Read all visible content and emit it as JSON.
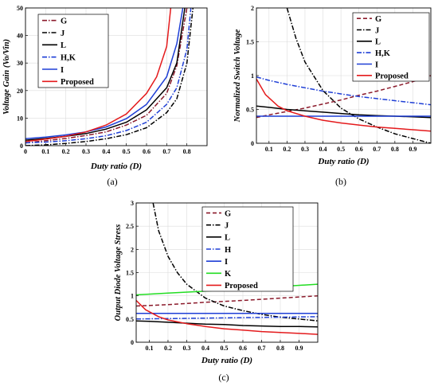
{
  "chart_data": [
    {
      "type": "line",
      "caption": "(a)",
      "xlabel": "Duty ratio (D)",
      "ylabel": "Voltage Gain (Vo/Vin)",
      "xlim": [
        0,
        0.9
      ],
      "ylim": [
        0,
        50
      ],
      "xticks": [
        0,
        0.1,
        0.2,
        0.3,
        0.4,
        0.5,
        0.6,
        0.7,
        0.8
      ],
      "yticks": [
        0,
        10,
        20,
        30,
        40,
        50
      ],
      "grid": true,
      "legend_position": "top-left",
      "series": [
        {
          "name": "G",
          "color": "#8b1a2b",
          "dash": "dashdot",
          "x": [
            0,
            0.1,
            0.2,
            0.3,
            0.4,
            0.5,
            0.6,
            0.7,
            0.75,
            0.8
          ],
          "y": [
            1.0,
            1.8,
            2.6,
            3.7,
            5.0,
            7.5,
            11,
            19,
            29,
            50
          ]
        },
        {
          "name": "J",
          "color": "#000000",
          "dash": "dashdot",
          "x": [
            0,
            0.1,
            0.2,
            0.3,
            0.4,
            0.5,
            0.6,
            0.7,
            0.75,
            0.8,
            0.83
          ],
          "y": [
            0.0,
            0.3,
            0.8,
            1.5,
            2.5,
            4.0,
            6.5,
            12,
            17,
            30,
            50
          ]
        },
        {
          "name": "L",
          "color": "#000000",
          "dash": "solid",
          "x": [
            0,
            0.1,
            0.2,
            0.3,
            0.4,
            0.5,
            0.6,
            0.7,
            0.75,
            0.79
          ],
          "y": [
            2.0,
            2.6,
            3.4,
            4.4,
            6.0,
            8.5,
            13,
            21,
            30,
            50
          ]
        },
        {
          "name": "H,K",
          "color": "#1f3fd6",
          "dash": "dashdot",
          "x": [
            0,
            0.1,
            0.2,
            0.3,
            0.4,
            0.5,
            0.6,
            0.7,
            0.75,
            0.8,
            0.82
          ],
          "y": [
            1.0,
            1.3,
            1.8,
            2.5,
            3.6,
            5.5,
            8.5,
            15,
            21,
            35,
            50
          ]
        },
        {
          "name": "I",
          "color": "#1f3fd6",
          "dash": "solid",
          "x": [
            0,
            0.1,
            0.2,
            0.3,
            0.4,
            0.5,
            0.6,
            0.7,
            0.75,
            0.78
          ],
          "y": [
            2.5,
            3.1,
            3.9,
            5.0,
            6.8,
            9.8,
            15,
            25,
            37,
            50
          ]
        },
        {
          "name": "Proposed",
          "color": "#e41a1c",
          "dash": "solid",
          "x": [
            0,
            0.1,
            0.2,
            0.3,
            0.4,
            0.5,
            0.6,
            0.65,
            0.7,
            0.72
          ],
          "y": [
            1.5,
            2.4,
            3.4,
            5.0,
            7.5,
            11.5,
            19,
            25,
            36,
            50
          ]
        }
      ]
    },
    {
      "type": "line",
      "caption": "(b)",
      "xlabel": "Duty ratio (D)",
      "ylabel": "Normalized Switch Voltage",
      "xlim": [
        0.03,
        1.0
      ],
      "ylim": [
        0,
        2
      ],
      "xticks": [
        0.1,
        0.2,
        0.3,
        0.4,
        0.5,
        0.6,
        0.7,
        0.8,
        0.9
      ],
      "yticks": [
        0,
        0.5,
        1,
        1.5,
        2
      ],
      "grid": true,
      "legend_position": "top-right",
      "series": [
        {
          "name": "G",
          "color": "#8b1a2b",
          "dash": "dash",
          "x": [
            0.03,
            0.1,
            0.2,
            0.3,
            0.4,
            0.5,
            0.6,
            0.7,
            0.8,
            0.9,
            1.0
          ],
          "y": [
            0.38,
            0.42,
            0.47,
            0.52,
            0.58,
            0.64,
            0.71,
            0.77,
            0.84,
            0.91,
            1.0
          ]
        },
        {
          "name": "J",
          "color": "#000000",
          "dash": "dashdot",
          "x": [
            0.2,
            0.25,
            0.3,
            0.4,
            0.5,
            0.6,
            0.7,
            0.8,
            0.9,
            1.0
          ],
          "y": [
            2.0,
            1.55,
            1.2,
            0.78,
            0.52,
            0.36,
            0.24,
            0.14,
            0.07,
            0.0
          ]
        },
        {
          "name": "L",
          "color": "#000000",
          "dash": "solid",
          "x": [
            0.03,
            0.1,
            0.2,
            0.3,
            0.4,
            0.5,
            0.6,
            0.7,
            0.8,
            0.9,
            1.0
          ],
          "y": [
            0.55,
            0.53,
            0.5,
            0.48,
            0.46,
            0.44,
            0.42,
            0.41,
            0.4,
            0.39,
            0.38
          ]
        },
        {
          "name": "H,K",
          "color": "#1f3fd6",
          "dash": "dashdot",
          "x": [
            0.03,
            0.1,
            0.2,
            0.3,
            0.4,
            0.5,
            0.6,
            0.7,
            0.8,
            0.9,
            1.0
          ],
          "y": [
            0.98,
            0.93,
            0.87,
            0.82,
            0.77,
            0.73,
            0.69,
            0.66,
            0.63,
            0.6,
            0.57
          ]
        },
        {
          "name": "I",
          "color": "#1f3fd6",
          "dash": "solid",
          "x": [
            0.03,
            0.2,
            0.4,
            0.6,
            0.8,
            1.0
          ],
          "y": [
            0.4,
            0.4,
            0.4,
            0.4,
            0.4,
            0.4
          ]
        },
        {
          "name": "Proposed",
          "color": "#e41a1c",
          "dash": "solid",
          "x": [
            0.03,
            0.08,
            0.15,
            0.2,
            0.3,
            0.4,
            0.5,
            0.6,
            0.7,
            0.8,
            0.9,
            1.0
          ],
          "y": [
            0.95,
            0.72,
            0.55,
            0.48,
            0.4,
            0.34,
            0.3,
            0.27,
            0.24,
            0.22,
            0.2,
            0.18
          ]
        }
      ]
    },
    {
      "type": "line",
      "caption": "(c)",
      "xlabel": "Duty ratio (D)",
      "ylabel": "Output Diode Voltage Stress",
      "xlim": [
        0.03,
        1.0
      ],
      "ylim": [
        0,
        3
      ],
      "xticks": [
        0.1,
        0.2,
        0.3,
        0.4,
        0.5,
        0.6,
        0.7,
        0.8,
        0.9
      ],
      "yticks": [
        0,
        0.5,
        1,
        1.5,
        2,
        2.5,
        3
      ],
      "grid": true,
      "legend_position": "top-right",
      "series": [
        {
          "name": "G",
          "color": "#8b1a2b",
          "dash": "dash",
          "x": [
            0.03,
            0.2,
            0.4,
            0.6,
            0.8,
            1.0
          ],
          "y": [
            0.78,
            0.81,
            0.86,
            0.9,
            0.95,
            1.0
          ]
        },
        {
          "name": "J",
          "color": "#000000",
          "dash": "dashdot",
          "x": [
            0.12,
            0.15,
            0.2,
            0.25,
            0.3,
            0.4,
            0.5,
            0.6,
            0.7,
            0.8,
            0.9,
            1.0
          ],
          "y": [
            3.0,
            2.4,
            1.85,
            1.5,
            1.25,
            0.95,
            0.78,
            0.68,
            0.6,
            0.54,
            0.5,
            0.46
          ]
        },
        {
          "name": "L",
          "color": "#000000",
          "dash": "solid",
          "x": [
            0.03,
            0.1,
            0.2,
            0.3,
            0.4,
            0.5,
            0.6,
            0.7,
            0.8,
            0.9,
            1.0
          ],
          "y": [
            0.46,
            0.45,
            0.43,
            0.41,
            0.39,
            0.38,
            0.36,
            0.35,
            0.34,
            0.34,
            0.33
          ]
        },
        {
          "name": "H",
          "color": "#1f3fd6",
          "dash": "dashdot",
          "x": [
            0.03,
            0.2,
            0.4,
            0.6,
            0.8,
            1.0
          ],
          "y": [
            0.5,
            0.51,
            0.52,
            0.53,
            0.54,
            0.55
          ]
        },
        {
          "name": "I",
          "color": "#1f3fd6",
          "dash": "solid",
          "x": [
            0.03,
            0.2,
            0.4,
            0.6,
            0.8,
            1.0
          ],
          "y": [
            0.62,
            0.62,
            0.62,
            0.62,
            0.62,
            0.62
          ]
        },
        {
          "name": "K",
          "color": "#22dd22",
          "dash": "solid",
          "x": [
            0.03,
            0.2,
            0.4,
            0.6,
            0.8,
            1.0
          ],
          "y": [
            1.02,
            1.06,
            1.1,
            1.15,
            1.2,
            1.25
          ]
        },
        {
          "name": "Proposed",
          "color": "#e41a1c",
          "dash": "solid",
          "x": [
            0.03,
            0.08,
            0.15,
            0.2,
            0.3,
            0.4,
            0.5,
            0.6,
            0.7,
            0.8,
            0.9,
            1.0
          ],
          "y": [
            0.9,
            0.7,
            0.55,
            0.48,
            0.4,
            0.34,
            0.29,
            0.26,
            0.23,
            0.21,
            0.19,
            0.17
          ]
        }
      ]
    }
  ]
}
